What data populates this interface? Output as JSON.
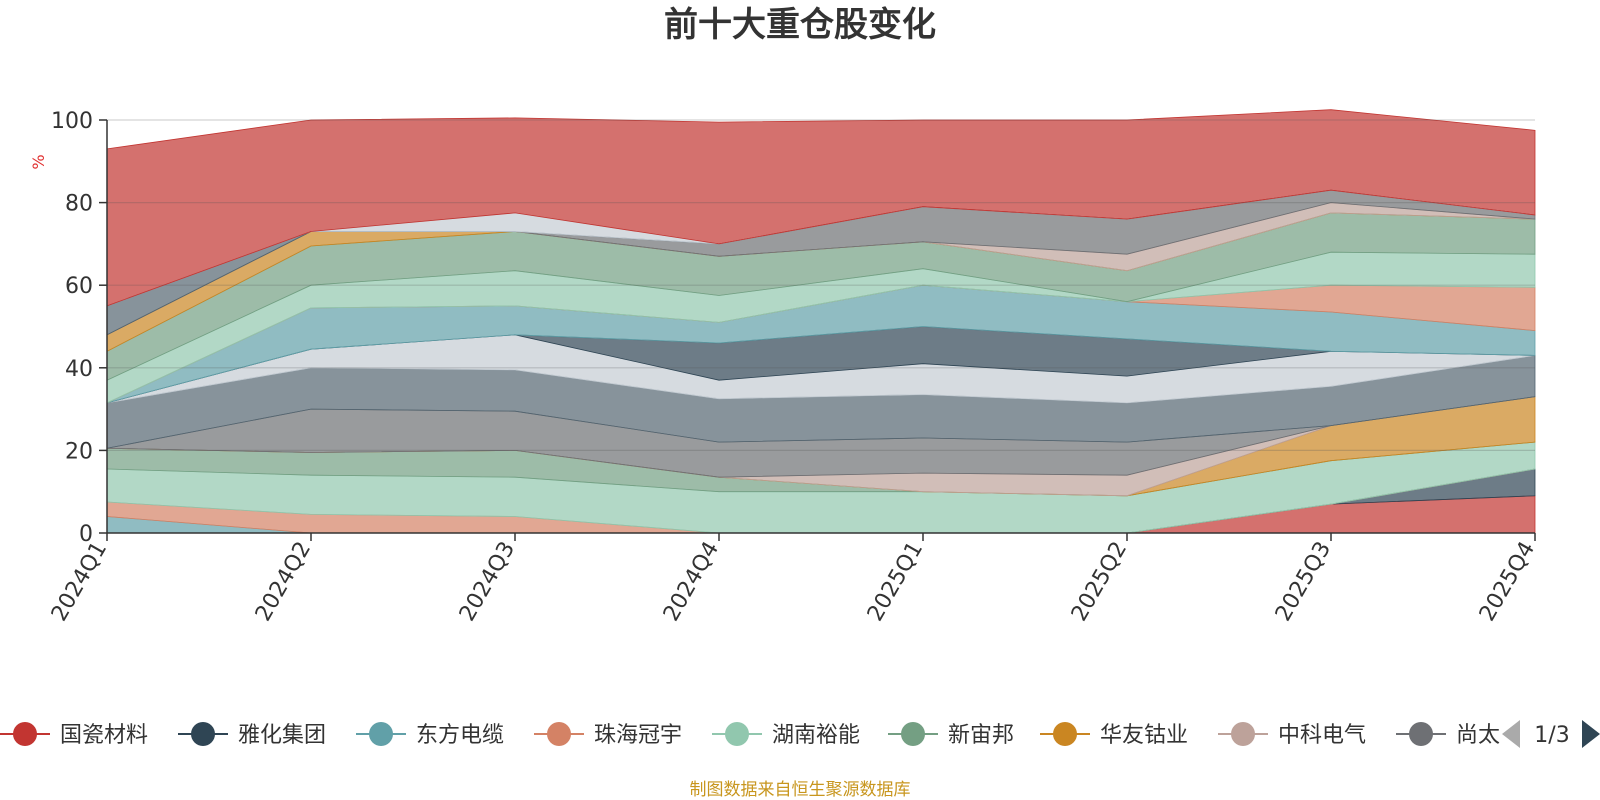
{
  "chart_data": {
    "type": "area",
    "title": "前十大重仓股变化",
    "ylabel": "%",
    "ylim": [
      0,
      100
    ],
    "yticks": [
      0,
      20,
      40,
      60,
      80,
      100
    ],
    "grid": true,
    "legend_position": "bottom",
    "categories": [
      "2024Q1",
      "2024Q2",
      "2024Q3",
      "2024Q4",
      "2025Q1",
      "2025Q2",
      "2025Q3",
      "2025Q4"
    ],
    "series": [
      {
        "name": "国瓷材料",
        "color": "#c23531",
        "values": [
          0,
          0,
          0,
          0,
          0,
          0,
          7,
          9
        ]
      },
      {
        "name": "雅化集团",
        "color": "#2f4554",
        "values": [
          0,
          0,
          0,
          0,
          0,
          0,
          0,
          6.5
        ]
      },
      {
        "name": "东方电缆",
        "color": "#61a0a8",
        "values": [
          4,
          0,
          0,
          0,
          0,
          0,
          0,
          0
        ]
      },
      {
        "name": "珠海冠宇",
        "color": "#d48265",
        "values": [
          3.5,
          4.5,
          4,
          0,
          0,
          0,
          0,
          0
        ]
      },
      {
        "name": "湖南裕能",
        "color": "#91c7ae",
        "values": [
          8,
          9.5,
          9.5,
          10,
          10,
          9,
          10.5,
          6.5
        ]
      },
      {
        "name": "新宙邦",
        "color": "#749f83",
        "values": [
          5,
          5.5,
          6.5,
          3.5,
          0,
          0,
          0,
          0
        ]
      },
      {
        "name": "华友钴业",
        "color": "#ca8622",
        "values": [
          0,
          0,
          0,
          0,
          0,
          0,
          8.5,
          11
        ]
      },
      {
        "name": "中科电气",
        "color": "#bda29a",
        "values": [
          0,
          0,
          0,
          0,
          4.5,
          5,
          0,
          0
        ]
      },
      {
        "name": "尚太科技",
        "color": "#6e7074",
        "values": [
          0,
          10.5,
          9.5,
          8.5,
          8.5,
          8,
          0,
          0
        ]
      },
      {
        "name": "",
        "color": "#546570",
        "values": [
          11,
          10,
          10,
          10.5,
          10.5,
          9.5,
          9.5,
          10
        ]
      },
      {
        "name": "",
        "color": "#c4ccd3",
        "values": [
          0,
          4.5,
          8.5,
          4.5,
          7.5,
          6.5,
          8.5,
          0
        ]
      },
      {
        "name": "",
        "color": "#2f4554",
        "values": [
          0,
          0,
          0,
          9,
          9,
          9,
          0,
          0
        ]
      },
      {
        "name": "",
        "color": "#61a0a8",
        "values": [
          0,
          10,
          7,
          5,
          10,
          9,
          9.5,
          6
        ]
      },
      {
        "name": "",
        "color": "#d48265",
        "values": [
          0,
          0,
          0,
          0,
          0,
          0,
          6.5,
          10.5
        ]
      },
      {
        "name": "",
        "color": "#91c7ae",
        "values": [
          5.5,
          5.5,
          8.5,
          6.5,
          4,
          0,
          8,
          8
        ]
      },
      {
        "name": "",
        "color": "#749f83",
        "values": [
          7,
          9.5,
          9.5,
          9.5,
          6.5,
          7.5,
          9.5,
          8.5
        ]
      },
      {
        "name": "",
        "color": "#ca8622",
        "values": [
          4,
          3.5,
          0,
          0,
          0,
          0,
          0,
          0
        ]
      },
      {
        "name": "",
        "color": "#bda29a",
        "values": [
          0,
          0,
          0,
          0,
          0,
          4,
          2.5,
          0
        ]
      },
      {
        "name": "",
        "color": "#6e7074",
        "values": [
          0,
          0,
          0,
          3,
          8.5,
          8.5,
          3,
          1
        ]
      },
      {
        "name": "",
        "color": "#546570",
        "values": [
          7,
          0,
          0,
          0,
          0,
          0,
          0,
          0
        ]
      },
      {
        "name": "",
        "color": "#c4ccd3",
        "values": [
          0,
          0,
          4.5,
          0,
          0,
          0,
          0,
          0
        ]
      },
      {
        "name": "",
        "color": "#c23531",
        "values": [
          38,
          27,
          23,
          29.5,
          21,
          24,
          19.5,
          20.5
        ]
      }
    ]
  },
  "legend": {
    "items": [
      {
        "label": "国瓷材料",
        "color": "#c23531"
      },
      {
        "label": "雅化集团",
        "color": "#2f4554"
      },
      {
        "label": "东方电缆",
        "color": "#61a0a8"
      },
      {
        "label": "珠海冠宇",
        "color": "#d48265"
      },
      {
        "label": "湖南裕能",
        "color": "#91c7ae"
      },
      {
        "label": "新宙邦",
        "color": "#749f83"
      },
      {
        "label": "华友钴业",
        "color": "#ca8622"
      },
      {
        "label": "中科电气",
        "color": "#bda29a"
      },
      {
        "label": "尚太",
        "color": "#6e7074"
      }
    ],
    "page_indicator": "1/3",
    "prev_icon": "triangle-left-icon",
    "next_icon": "triangle-right-icon"
  },
  "footer": {
    "source_text": "制图数据来自恒生聚源数据库"
  }
}
